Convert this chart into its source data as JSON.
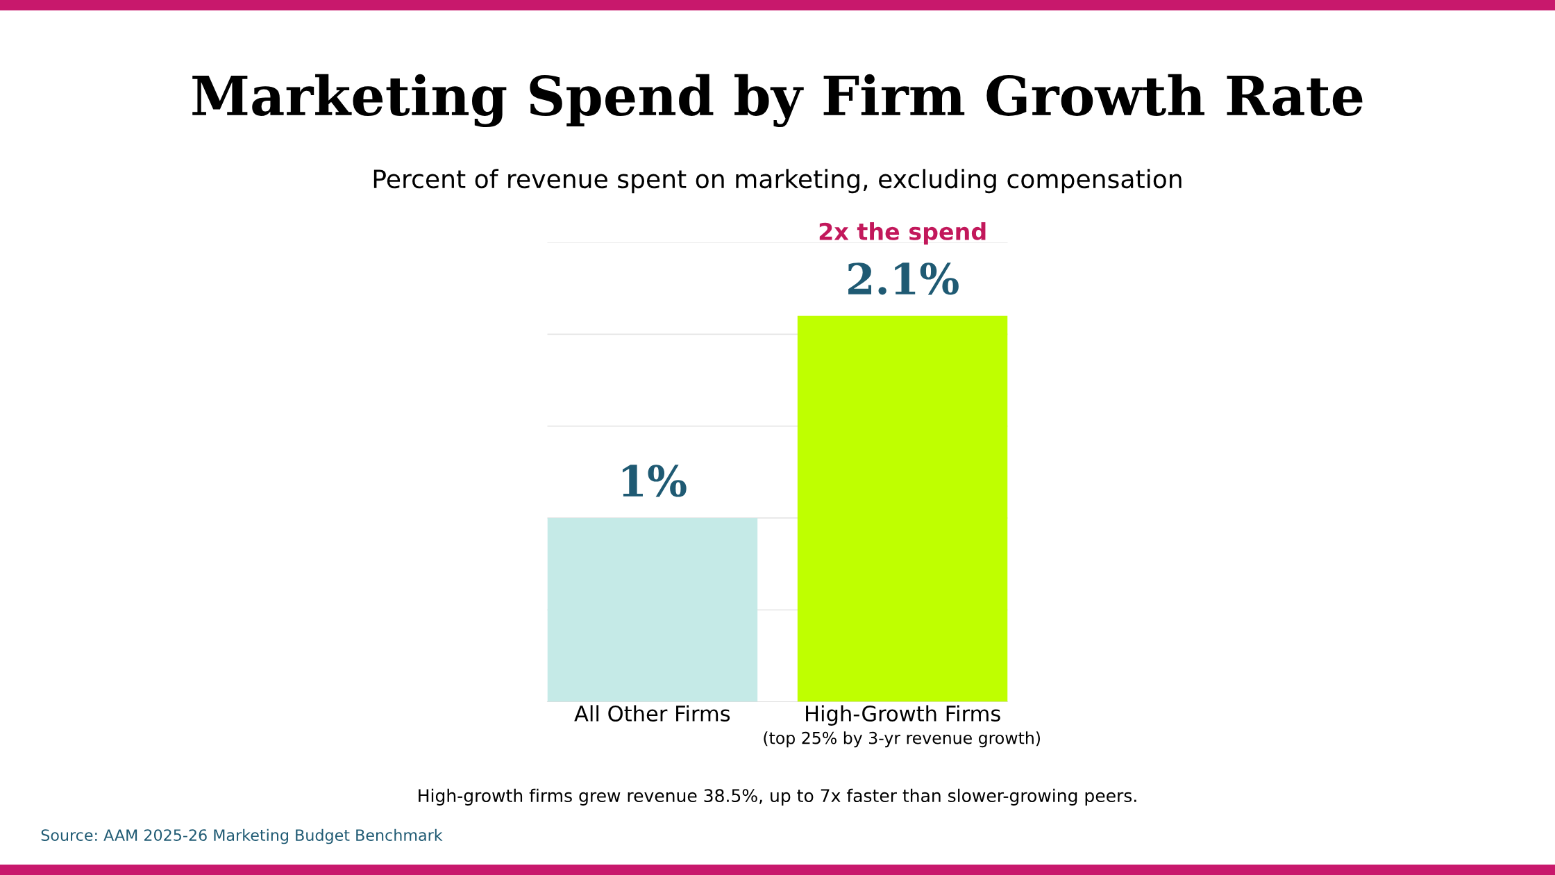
{
  "chart_data": {
    "type": "bar",
    "title": "Marketing Spend by Firm Growth Rate",
    "subtitle": "Percent of revenue spent on marketing, excluding compensation",
    "categories": [
      "All Other Firms",
      "High-Growth Firms"
    ],
    "values": [
      1,
      2.1
    ],
    "colors": [
      "#c5eae7",
      "#bfff00"
    ],
    "value_labels": [
      "1%",
      "2.1%"
    ],
    "ylim": [
      0,
      2.5
    ],
    "yticks": [
      {
        "value": 0.5,
        "label": null
      },
      {
        "value": 1,
        "label": null
      },
      {
        "value": 1.5,
        "label": null
      },
      {
        "value": 2,
        "label": null
      },
      {
        "value": 2.5,
        "label": null
      }
    ],
    "grid": "y",
    "tick_labels": "x",
    "legend": false,
    "annotations": [
      "2x the spend",
      "(top 25% by 3-yr revenue growth)",
      "High-growth firms grew revenue 38.5%, up to 7x faster than slower-growing peers.",
      "Source: AAM 2025-26 Marketing Budget Benchmark"
    ]
  }
}
